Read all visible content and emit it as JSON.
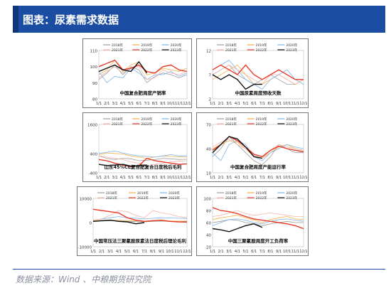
{
  "header": {
    "title": "图表：尿素需求数据"
  },
  "source": "数据来源：Wind 、中粮期货研究院",
  "months": [
    "1/1",
    "2/1",
    "3/1",
    "4/1",
    "5/1",
    "6/1",
    "7/1",
    "8/1",
    "9/1",
    "10/1",
    "11/1",
    "12/1"
  ],
  "colors": {
    "y2018": "#9c9c9c",
    "y2019": "#f4b24a",
    "y2020": "#7eb3e8",
    "y2021": "#f2b6a8",
    "y2022": "#e83a2a",
    "y2023": "#111111",
    "header": "#1b4da3"
  },
  "chart_data": [
    {
      "type": "line",
      "title": "中国复合肥周度产销率",
      "ylim": [
        80,
        110
      ],
      "yticks": [
        "110",
        "100",
        "90",
        "80"
      ],
      "x": [
        "1/1",
        "2/1",
        "3/1",
        "4/1",
        "5/1",
        "6/1",
        "7/1",
        "8/1",
        "9/1",
        "10/1",
        "11/1",
        "12/1"
      ],
      "series": [
        {
          "name": "2018年",
          "values": [
            92,
            96,
            101,
            95,
            100,
            98,
            90,
            94,
            96,
            95,
            93,
            95
          ]
        },
        {
          "name": "2019年",
          "values": [
            95,
            98,
            104,
            97,
            101,
            103,
            95,
            96,
            99,
            98,
            97,
            99
          ]
        },
        {
          "name": "2020年",
          "values": [
            97,
            90,
            94,
            93,
            99,
            96,
            92,
            95,
            95,
            97,
            94,
            96
          ]
        },
        {
          "name": "2021年",
          "values": [
            93,
            97,
            100,
            96,
            99,
            100,
            92,
            93,
            98,
            96,
            95,
            97
          ]
        },
        {
          "name": "2022年",
          "values": [
            100,
            102,
            104,
            98,
            99,
            101,
            97,
            96,
            100,
            101,
            98,
            97
          ]
        },
        {
          "name": "2023年",
          "values": [
            97,
            99,
            101,
            98,
            97,
            103,
            96,
            null,
            null,
            null,
            null,
            null
          ]
        }
      ]
    },
    {
      "type": "line",
      "title": "中国尿素周度预收天数",
      "ylim": [
        2,
        12
      ],
      "yticks": [
        "12",
        "7",
        "2"
      ],
      "x": [
        "1/1",
        "2/1",
        "3/1",
        "4/1",
        "5/1",
        "6/1",
        "7/1",
        "8/1",
        "9/1",
        "10/1",
        "11/1",
        "12/1"
      ],
      "series": [
        {
          "name": "2018年",
          "values": [
            7,
            8,
            9,
            7,
            6,
            5,
            6,
            7,
            6,
            5,
            5,
            6
          ]
        },
        {
          "name": "2019年",
          "values": [
            6,
            7,
            8,
            9,
            7,
            5,
            5,
            6,
            7,
            6,
            5,
            6
          ]
        },
        {
          "name": "2020年",
          "values": [
            8,
            9,
            10,
            8,
            6,
            5,
            4,
            6,
            7,
            8,
            6,
            5
          ]
        },
        {
          "name": "2021年",
          "values": [
            7,
            8,
            9,
            8,
            7,
            6,
            5,
            7,
            7,
            6,
            5,
            6
          ]
        },
        {
          "name": "2022年",
          "values": [
            8,
            9,
            8,
            7,
            9,
            7,
            6,
            7,
            8,
            7,
            6,
            6
          ]
        },
        {
          "name": "2023年",
          "values": [
            7,
            6,
            7,
            6,
            4,
            5,
            5,
            null,
            null,
            null,
            null,
            null
          ]
        }
      ]
    },
    {
      "type": "line",
      "title": "山东45%CL复合肥复合日度税后毛利",
      "ylim": [
        -400,
        1600
      ],
      "yticks": [
        "1600",
        "400",
        "-400"
      ],
      "x": [
        "1/1",
        "2/1",
        "3/1",
        "4/1",
        "5/1",
        "6/1",
        "7/1",
        "8/1",
        "9/1",
        "10/1",
        "11/1",
        "12/1"
      ],
      "series": [
        {
          "name": "2018年",
          "values": [
            300,
            200,
            150,
            200,
            180,
            100,
            120,
            150,
            200,
            180,
            150,
            160
          ]
        },
        {
          "name": "2019年",
          "values": [
            350,
            420,
            400,
            380,
            300,
            250,
            200,
            250,
            300,
            280,
            260,
            250
          ]
        },
        {
          "name": "2020年",
          "values": [
            400,
            450,
            500,
            420,
            350,
            300,
            280,
            250,
            300,
            350,
            300,
            300
          ]
        },
        {
          "name": "2021年",
          "values": [
            300,
            250,
            200,
            150,
            50,
            0,
            -100,
            -50,
            0,
            50,
            80,
            100
          ]
        },
        {
          "name": "2022年",
          "values": [
            150,
            100,
            0,
            -80,
            -150,
            -100,
            200,
            100,
            50,
            0,
            -50,
            -30
          ]
        },
        {
          "name": "2023年",
          "values": [
            -50,
            -100,
            -80,
            -50,
            -120,
            -100,
            -80,
            null,
            null,
            null,
            null,
            null
          ]
        }
      ]
    },
    {
      "type": "line",
      "title": "中国复合肥周度产能运行率",
      "ylim": [
        10,
        70
      ],
      "yticks": [
        "70",
        "40",
        "10"
      ],
      "x": [
        "1/1",
        "2/1",
        "3/1",
        "4/1",
        "5/1",
        "6/1",
        "7/1",
        "8/1",
        "9/1",
        "10/1",
        "11/1",
        "12/1"
      ],
      "series": [
        {
          "name": "2018年",
          "values": [
            30,
            40,
            55,
            45,
            35,
            25,
            20,
            30,
            45,
            40,
            35,
            35
          ]
        },
        {
          "name": "2019年",
          "values": [
            40,
            45,
            50,
            48,
            40,
            30,
            28,
            35,
            42,
            45,
            40,
            38
          ]
        },
        {
          "name": "2020年",
          "values": [
            35,
            25,
            45,
            50,
            45,
            30,
            25,
            35,
            40,
            45,
            42,
            40
          ]
        },
        {
          "name": "2021年",
          "values": [
            42,
            48,
            52,
            45,
            40,
            32,
            28,
            38,
            45,
            42,
            40,
            38
          ]
        },
        {
          "name": "2022年",
          "values": [
            38,
            45,
            55,
            50,
            42,
            33,
            30,
            38,
            43,
            40,
            38,
            36
          ]
        },
        {
          "name": "2023年",
          "values": [
            35,
            45,
            55,
            52,
            42,
            30,
            28,
            null,
            null,
            null,
            null,
            null
          ]
        }
      ]
    },
    {
      "type": "line",
      "title": "中国常压法三聚氰胺尿素法日度税后理论毛利",
      "ylim": [
        -10000,
        10000
      ],
      "yticks": [
        "10000",
        "0",
        "-10000"
      ],
      "x": [
        "1/1",
        "2/1",
        "3/1",
        "4/1",
        "5/1",
        "6/1",
        "7/1",
        "8/1",
        "9/1",
        "10/1",
        "11/1",
        "12/1"
      ],
      "series": [
        {
          "name": "2018年",
          "values": [
            500,
            600,
            800,
            700,
            500,
            400,
            300,
            500,
            600,
            500,
            400,
            500
          ]
        },
        {
          "name": "2019年",
          "values": [
            800,
            900,
            1000,
            900,
            800,
            700,
            600,
            700,
            800,
            700,
            600,
            700
          ]
        },
        {
          "name": "2020年",
          "values": [
            1000,
            1500,
            2000,
            2500,
            2000,
            1800,
            1500,
            1800,
            2000,
            1900,
            1800,
            1700
          ]
        },
        {
          "name": "2021年",
          "values": [
            1000,
            1500,
            3000,
            5000,
            4500,
            3000,
            2000,
            5000,
            4000,
            3500,
            2500,
            2000
          ]
        },
        {
          "name": "2022年",
          "values": [
            5500,
            5000,
            4500,
            4000,
            2000,
            1000,
            500,
            800,
            1000,
            500,
            300,
            200
          ]
        },
        {
          "name": "2023年",
          "values": [
            500,
            800,
            1000,
            500,
            300,
            -500,
            0,
            null,
            null,
            null,
            null,
            null
          ]
        }
      ]
    },
    {
      "type": "line",
      "title": "中国三聚氰胺周度开工负荷率",
      "ylim": [
        20,
        100
      ],
      "yticks": [
        "100",
        "80",
        "60",
        "40",
        "20"
      ],
      "x": [
        "1/1",
        "2/1",
        "3/1",
        "4/1",
        "5/1",
        "6/1",
        "7/1",
        "8/1",
        "9/1",
        "10/1",
        "11/1",
        "12/1"
      ],
      "series": [
        {
          "name": "2018年",
          "values": [
            60,
            62,
            65,
            64,
            60,
            58,
            55,
            58,
            60,
            62,
            60,
            60
          ]
        },
        {
          "name": "2019年",
          "values": [
            65,
            68,
            70,
            72,
            68,
            64,
            60,
            65,
            68,
            70,
            66,
            65
          ]
        },
        {
          "name": "2020年",
          "values": [
            55,
            60,
            65,
            66,
            64,
            60,
            58,
            62,
            65,
            66,
            64,
            62
          ]
        },
        {
          "name": "2021年",
          "values": [
            70,
            72,
            76,
            80,
            75,
            72,
            74,
            76,
            74,
            72,
            70,
            70
          ]
        },
        {
          "name": "2022年",
          "values": [
            85,
            80,
            78,
            75,
            70,
            66,
            64,
            62,
            60,
            58,
            55,
            50
          ]
        },
        {
          "name": "2023年",
          "values": [
            50,
            48,
            45,
            50,
            55,
            58,
            52,
            null,
            null,
            null,
            null,
            null
          ]
        }
      ]
    }
  ]
}
